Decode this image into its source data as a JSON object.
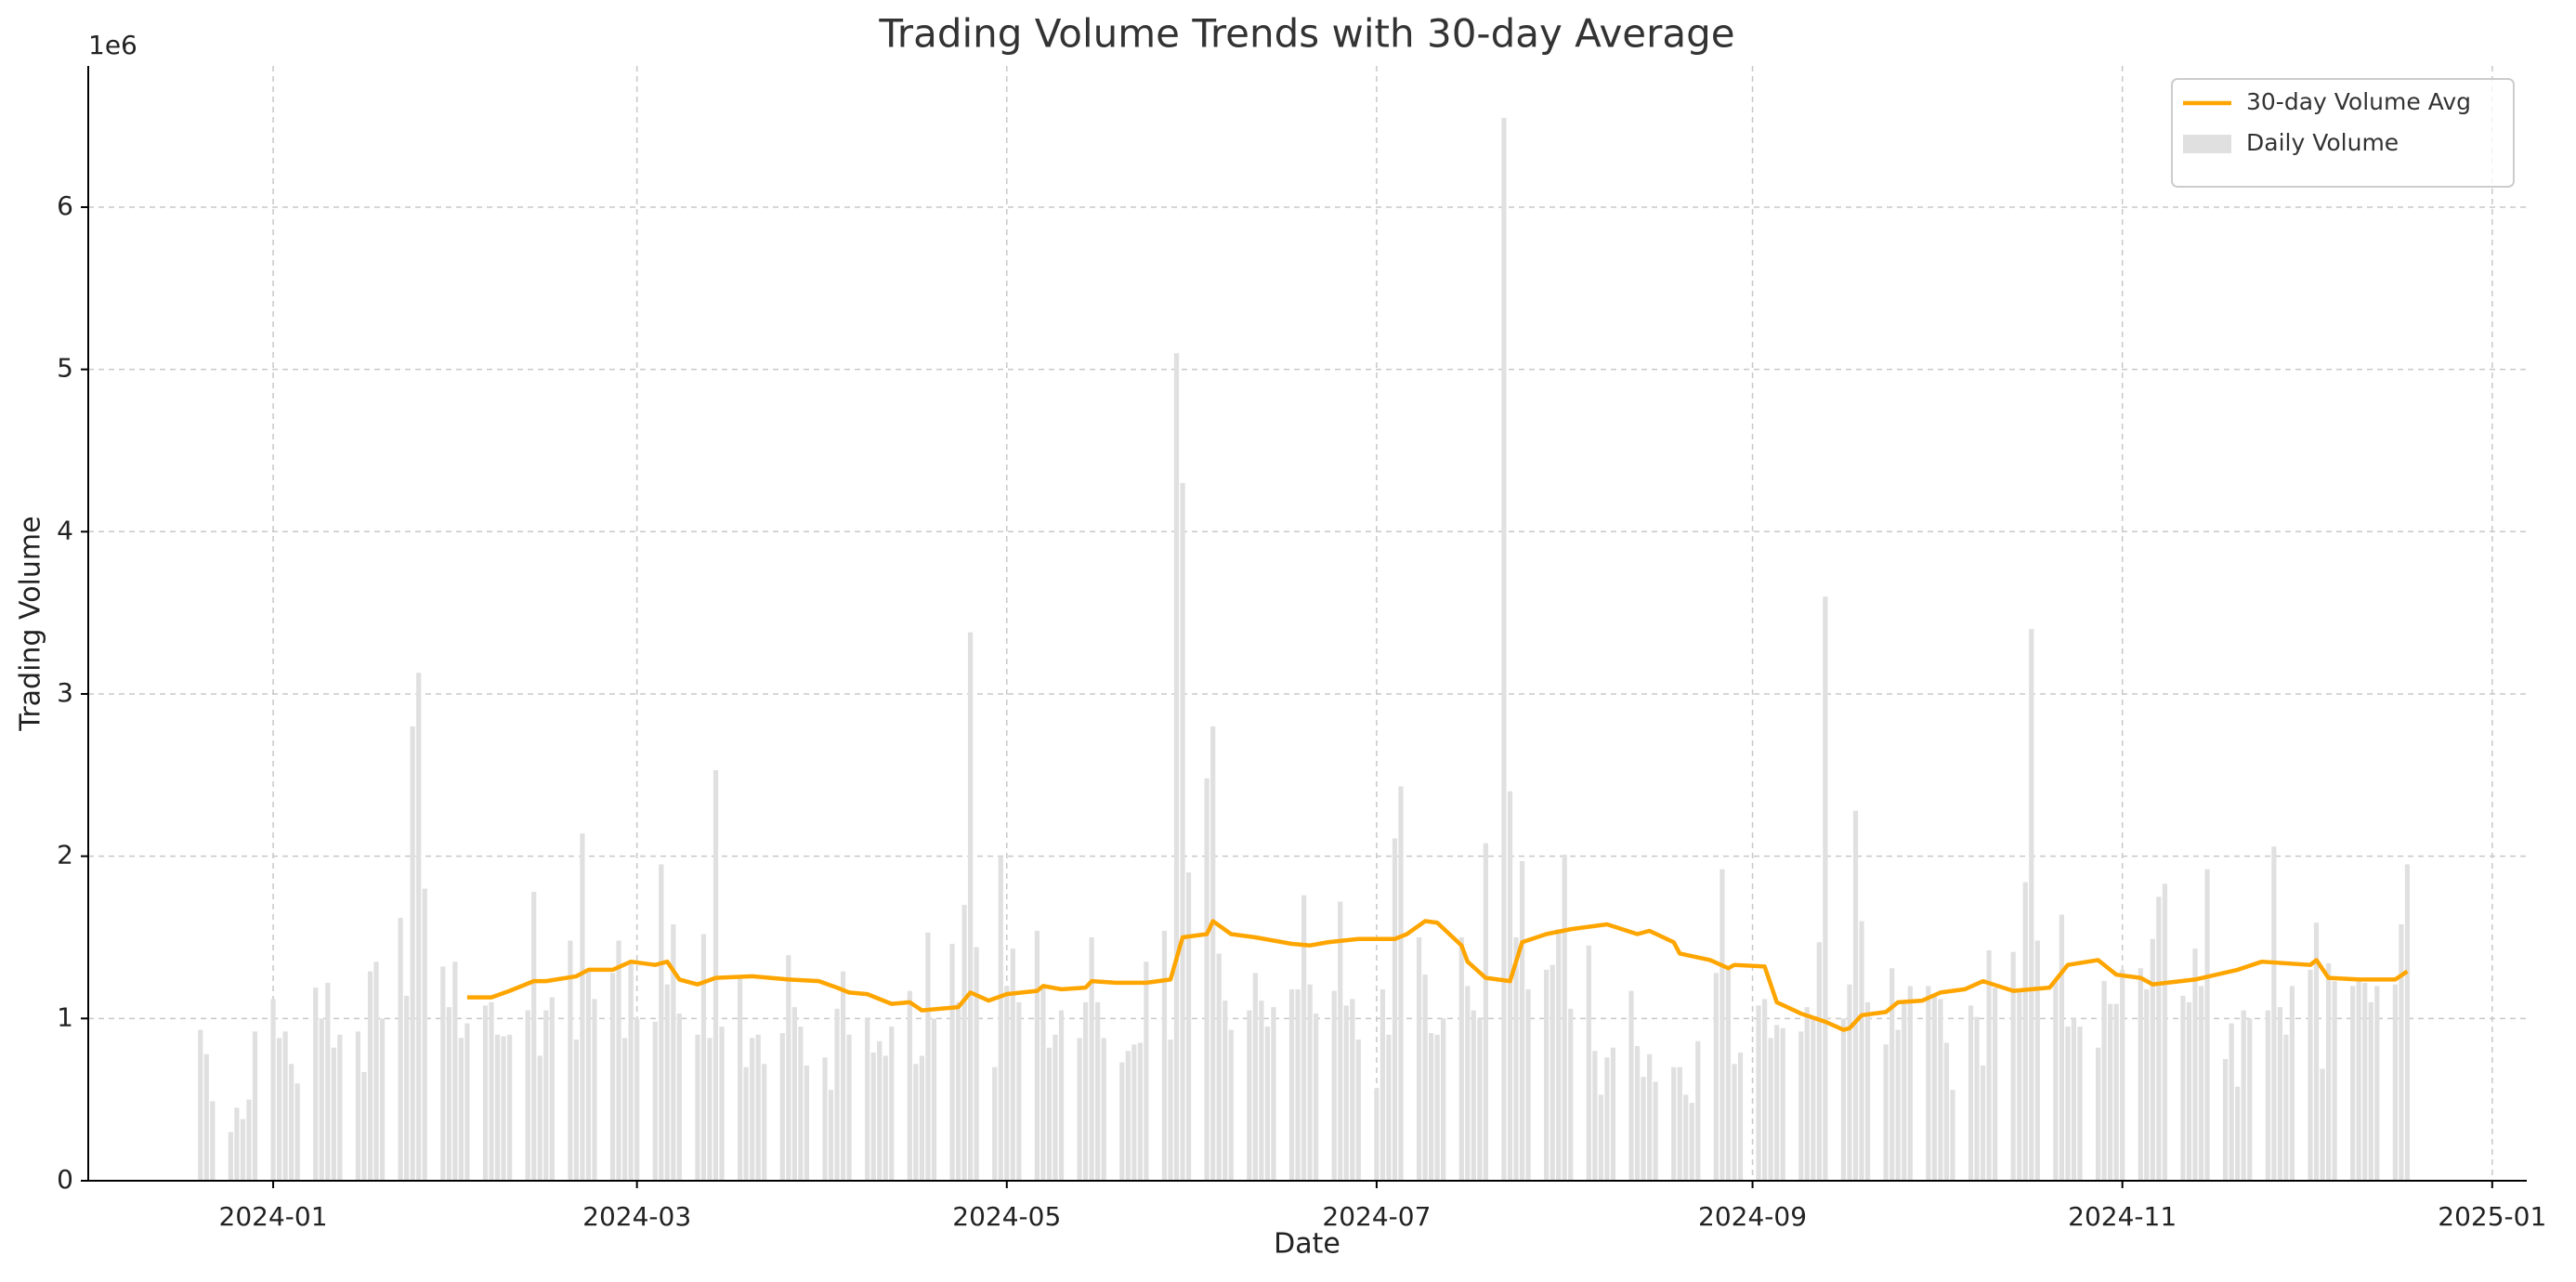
{
  "chart_data": {
    "type": "combo",
    "title": "Trading Volume Trends with 30-day Average",
    "xlabel": "Date",
    "ylabel": "Trading Volume",
    "y_offset_label": "1e6",
    "xlim": [
      -30.5,
      371.7
    ],
    "xticks": [
      {
        "value": 0,
        "label": "2024-01"
      },
      {
        "value": 60,
        "label": "2024-03"
      },
      {
        "value": 121,
        "label": "2024-05"
      },
      {
        "value": 182,
        "label": "2024-07"
      },
      {
        "value": 244,
        "label": "2024-09"
      },
      {
        "value": 305,
        "label": "2024-11"
      },
      {
        "value": 366,
        "label": "2025-01"
      }
    ],
    "ylim": [
      0,
      6.87
    ],
    "yticks": [
      0,
      1,
      2,
      3,
      4,
      5,
      6
    ],
    "grid": true,
    "legend": "upper right",
    "series": [
      {
        "name": "30-day Volume Avg",
        "type": "line",
        "color": "#ffa500",
        "x": [
          32,
          36,
          39,
          43,
          45,
          50,
          52,
          56,
          59,
          63,
          65,
          67,
          70,
          73,
          79,
          85,
          90,
          93,
          95,
          98,
          102,
          105,
          107,
          113,
          115,
          118,
          121,
          126,
          127,
          130,
          134,
          135,
          139,
          144,
          148,
          150,
          154,
          155,
          158,
          162,
          168,
          171,
          174,
          179,
          185,
          187,
          190,
          192,
          196,
          197,
          200,
          204,
          206,
          210,
          214,
          218,
          220,
          225,
          227,
          231,
          232,
          237,
          240,
          241,
          246,
          248,
          252,
          256,
          259,
          260,
          262,
          266,
          268,
          272,
          275,
          279,
          282,
          287,
          293,
          296,
          301,
          304,
          308,
          310,
          317,
          324,
          328,
          336,
          337,
          339,
          344,
          350,
          352
        ],
        "values": [
          1.13,
          1.13,
          1.17,
          1.23,
          1.23,
          1.26,
          1.3,
          1.3,
          1.35,
          1.33,
          1.35,
          1.24,
          1.21,
          1.25,
          1.26,
          1.24,
          1.23,
          1.19,
          1.16,
          1.15,
          1.09,
          1.1,
          1.05,
          1.07,
          1.16,
          1.11,
          1.15,
          1.17,
          1.2,
          1.18,
          1.19,
          1.23,
          1.22,
          1.22,
          1.24,
          1.5,
          1.52,
          1.6,
          1.52,
          1.5,
          1.46,
          1.45,
          1.47,
          1.49,
          1.49,
          1.52,
          1.6,
          1.59,
          1.45,
          1.35,
          1.25,
          1.23,
          1.47,
          1.52,
          1.55,
          1.57,
          1.58,
          1.52,
          1.54,
          1.47,
          1.4,
          1.36,
          1.31,
          1.33,
          1.32,
          1.1,
          1.03,
          0.98,
          0.93,
          0.94,
          1.02,
          1.04,
          1.1,
          1.11,
          1.16,
          1.18,
          1.23,
          1.17,
          1.19,
          1.33,
          1.36,
          1.27,
          1.25,
          1.21,
          1.24,
          1.3,
          1.35,
          1.33,
          1.36,
          1.25,
          1.24,
          1.24,
          1.29
        ]
      },
      {
        "name": "Daily Volume",
        "type": "bar",
        "color": "#e0e0e0",
        "x": [
          -12,
          -11,
          -10,
          -7,
          -6,
          -5,
          -4,
          -3,
          0,
          1,
          2,
          3,
          4,
          7,
          8,
          9,
          10,
          11,
          14,
          15,
          16,
          17,
          18,
          21,
          22,
          23,
          24,
          25,
          28,
          29,
          30,
          31,
          32,
          35,
          36,
          37,
          38,
          39,
          42,
          43,
          44,
          45,
          46,
          49,
          50,
          51,
          52,
          53,
          56,
          57,
          58,
          59,
          60,
          63,
          64,
          65,
          66,
          67,
          70,
          71,
          72,
          73,
          74,
          77,
          78,
          79,
          80,
          81,
          84,
          85,
          86,
          87,
          88,
          91,
          92,
          93,
          94,
          95,
          98,
          99,
          100,
          101,
          102,
          105,
          106,
          107,
          108,
          109,
          112,
          113,
          114,
          115,
          116,
          119,
          120,
          121,
          122,
          123,
          126,
          127,
          128,
          129,
          130,
          133,
          134,
          135,
          136,
          137,
          140,
          141,
          142,
          143,
          144,
          147,
          148,
          149,
          150,
          151,
          154,
          155,
          156,
          157,
          158,
          161,
          162,
          163,
          164,
          165,
          168,
          169,
          170,
          171,
          172,
          175,
          176,
          177,
          178,
          179,
          182,
          183,
          184,
          185,
          186,
          189,
          190,
          191,
          192,
          193,
          196,
          197,
          198,
          199,
          200,
          203,
          204,
          205,
          206,
          207,
          210,
          211,
          212,
          213,
          214,
          217,
          218,
          219,
          220,
          221,
          224,
          225,
          226,
          227,
          228,
          231,
          232,
          233,
          234,
          235,
          238,
          239,
          240,
          241,
          242,
          245,
          246,
          247,
          248,
          249,
          252,
          253,
          254,
          255,
          256,
          259,
          260,
          261,
          262,
          263,
          266,
          267,
          268,
          269,
          270,
          273,
          274,
          275,
          276,
          277,
          280,
          281,
          282,
          283,
          284,
          287,
          288,
          289,
          290,
          291,
          294,
          295,
          296,
          297,
          298,
          301,
          302,
          303,
          304,
          305,
          308,
          309,
          310,
          311,
          312,
          315,
          316,
          317,
          318,
          319,
          322,
          323,
          324,
          325,
          326,
          329,
          330,
          331,
          332,
          333,
          336,
          337,
          338,
          339,
          340,
          343,
          344,
          345,
          346,
          347,
          350,
          351,
          352
        ],
        "values": [
          0.93,
          0.78,
          0.49,
          0.3,
          0.45,
          0.38,
          0.5,
          0.92,
          1.12,
          0.88,
          0.92,
          0.72,
          0.6,
          1.19,
          1.0,
          1.22,
          0.82,
          0.9,
          0.92,
          0.67,
          1.29,
          1.35,
          1.0,
          1.62,
          1.14,
          2.8,
          3.13,
          1.8,
          1.32,
          1.07,
          1.35,
          0.88,
          0.97,
          1.08,
          1.1,
          0.9,
          0.89,
          0.9,
          1.05,
          1.78,
          0.77,
          1.05,
          1.13,
          1.48,
          0.87,
          2.14,
          1.3,
          1.12,
          1.28,
          1.48,
          0.88,
          1.35,
          1.0,
          0.98,
          1.95,
          1.21,
          1.58,
          1.03,
          0.9,
          1.52,
          0.88,
          2.53,
          0.95,
          1.25,
          0.7,
          0.88,
          0.9,
          0.72,
          0.91,
          1.39,
          1.07,
          0.95,
          0.71,
          0.76,
          0.56,
          1.06,
          1.29,
          0.9,
          1.0,
          0.79,
          0.86,
          0.77,
          0.95,
          1.17,
          0.72,
          0.77,
          1.53,
          1.0,
          1.46,
          1.1,
          1.7,
          3.38,
          1.44,
          0.7,
          2.0,
          1.2,
          1.43,
          1.1,
          1.54,
          1.2,
          0.82,
          0.9,
          1.05,
          0.88,
          1.1,
          1.5,
          1.1,
          0.88,
          0.73,
          0.8,
          0.84,
          0.85,
          1.35,
          1.54,
          0.87,
          5.1,
          4.3,
          1.9,
          2.48,
          2.8,
          1.4,
          1.11,
          0.93,
          1.05,
          1.28,
          1.11,
          0.95,
          1.07,
          1.18,
          1.18,
          1.76,
          1.21,
          1.03,
          1.17,
          1.72,
          1.08,
          1.12,
          0.87,
          0.57,
          1.18,
          0.9,
          2.11,
          2.43,
          1.5,
          1.27,
          0.91,
          0.9,
          1.0,
          1.5,
          1.2,
          1.05,
          1.0,
          2.08,
          6.55,
          2.4,
          1.5,
          1.97,
          1.18,
          1.3,
          1.33,
          1.55,
          2.01,
          1.06,
          1.45,
          0.8,
          0.53,
          0.76,
          0.82,
          1.17,
          0.83,
          0.64,
          0.78,
          0.61,
          0.7,
          0.7,
          0.53,
          0.48,
          0.86,
          1.28,
          1.92,
          1.3,
          0.72,
          0.79,
          1.08,
          1.12,
          0.88,
          0.96,
          0.94,
          0.92,
          1.07,
          1.0,
          1.47,
          3.6,
          1.0,
          1.21,
          2.28,
          1.6,
          1.1,
          0.84,
          1.31,
          0.93,
          1.1,
          1.2,
          1.2,
          1.15,
          1.12,
          0.85,
          0.56,
          1.08,
          1.01,
          0.71,
          1.42,
          1.19,
          1.41,
          1.18,
          1.84,
          3.4,
          1.48,
          1.24,
          1.64,
          0.95,
          1.0,
          0.95,
          0.82,
          1.23,
          1.09,
          1.09,
          1.3,
          1.31,
          1.18,
          1.49,
          1.75,
          1.83,
          1.14,
          1.1,
          1.43,
          1.2,
          1.92,
          0.75,
          0.97,
          0.58,
          1.05,
          1.0,
          1.05,
          2.06,
          1.07,
          0.9,
          1.2,
          1.3,
          1.59,
          0.69,
          1.34,
          1.23,
          1.2,
          1.24,
          1.22,
          1.1,
          1.2,
          1.21,
          1.58,
          1.95
        ]
      }
    ]
  }
}
